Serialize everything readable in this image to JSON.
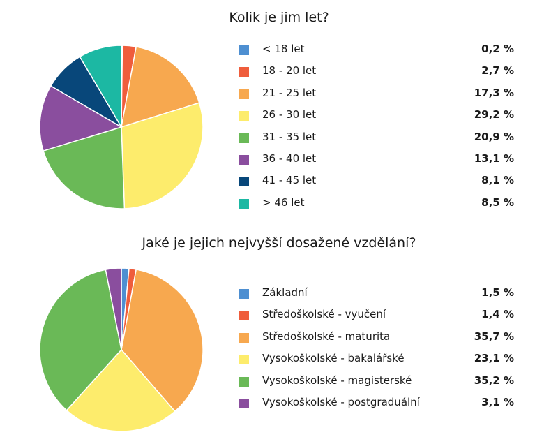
{
  "chart_data": [
    {
      "type": "pie",
      "title": "Kolik je jim let?",
      "categories": [
        "< 18 let",
        "18 - 20 let",
        "21 - 25 let",
        "26 - 30 let",
        "31 - 35 let",
        "36 - 40 let",
        "41 - 45 let",
        "> 46 let"
      ],
      "values": [
        0.2,
        2.7,
        17.3,
        29.2,
        20.9,
        13.1,
        8.1,
        8.5
      ],
      "value_labels": [
        "0,2 %",
        "2,7 %",
        "17,3 %",
        "29,2 %",
        "20,9 %",
        "13,1 %",
        "8,1 %",
        "8,5 %"
      ],
      "colors": [
        "#4e8fd1",
        "#ef5d3c",
        "#f7a84f",
        "#fdec6c",
        "#6ab957",
        "#8a4e9e",
        "#08477a",
        "#1cb8a3"
      ],
      "legend": "right"
    },
    {
      "type": "pie",
      "title": "Jaké je jejich nejvyšší dosažené vzdělání?",
      "categories": [
        "Základní",
        "Středoškolské - vyučení",
        "Středoškolské - maturita",
        "Vysokoškolské - bakalářské",
        "Vysokoškolské - magisterské",
        "Vysokoškolské - postgraduální"
      ],
      "values": [
        1.5,
        1.4,
        35.7,
        23.1,
        35.2,
        3.1
      ],
      "value_labels": [
        "1,5 %",
        "1,4 %",
        "35,7 %",
        "23,1 %",
        "35,2 %",
        "3,1 %"
      ],
      "colors": [
        "#4e8fd1",
        "#ef5d3c",
        "#f7a84f",
        "#fdec6c",
        "#6ab957",
        "#8a4e9e"
      ],
      "legend": "right"
    }
  ]
}
